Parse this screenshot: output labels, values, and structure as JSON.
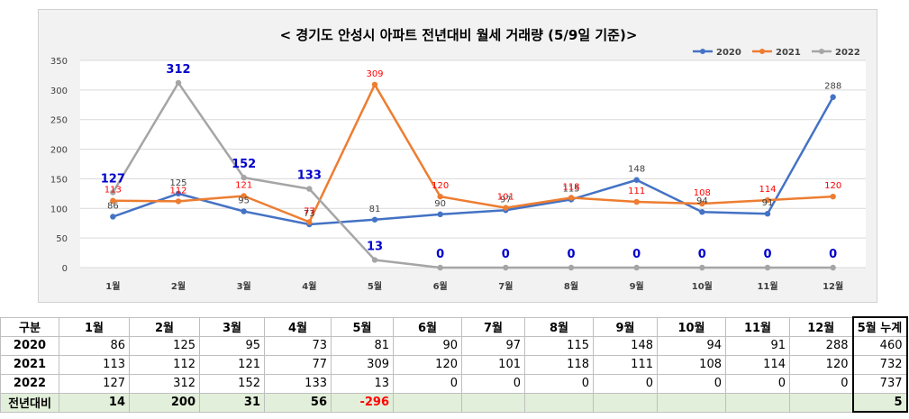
{
  "chart_data": {
    "type": "line",
    "title": "< 경기도 안성시  아파트 전년대비 월세 거래량 (5/9일 기준)>",
    "categories": [
      "1월",
      "2월",
      "3월",
      "4월",
      "5월",
      "6월",
      "7월",
      "8월",
      "9월",
      "10월",
      "11월",
      "12월"
    ],
    "ylim": [
      0,
      350
    ],
    "yticks": [
      0,
      50,
      100,
      150,
      200,
      250,
      300,
      350
    ],
    "grid": true,
    "legend": "top-right",
    "series": [
      {
        "name": "2020",
        "color": "#4472c4",
        "values": [
          86,
          125,
          95,
          73,
          81,
          90,
          97,
          115,
          148,
          94,
          91,
          288
        ],
        "label_color": "#404040"
      },
      {
        "name": "2021",
        "color": "#ed7d31",
        "values": [
          113,
          112,
          121,
          77,
          309,
          120,
          101,
          118,
          111,
          108,
          114,
          120
        ],
        "label_color": "#ff0000"
      },
      {
        "name": "2022",
        "color": "#a5a5a5",
        "values": [
          127,
          312,
          152,
          133,
          13,
          0,
          0,
          0,
          0,
          0,
          0,
          0
        ],
        "label_color": "#0000cc"
      }
    ]
  },
  "table": {
    "header": [
      "구분",
      "1월",
      "2월",
      "3월",
      "4월",
      "5월",
      "6월",
      "7월",
      "8월",
      "9월",
      "10월",
      "11월",
      "12월",
      "5월 누계"
    ],
    "rows": [
      {
        "label": "2020",
        "cells": [
          "86",
          "125",
          "95",
          "73",
          "81",
          "90",
          "97",
          "115",
          "148",
          "94",
          "91",
          "288"
        ],
        "total": "460"
      },
      {
        "label": "2021",
        "cells": [
          "113",
          "112",
          "121",
          "77",
          "309",
          "120",
          "101",
          "118",
          "111",
          "108",
          "114",
          "120"
        ],
        "total": "732"
      },
      {
        "label": "2022",
        "cells": [
          "127",
          "312",
          "152",
          "133",
          "13",
          "0",
          "0",
          "0",
          "0",
          "0",
          "0",
          "0"
        ],
        "total": "737"
      }
    ],
    "diff": {
      "label": "전년대비",
      "cells": [
        "14",
        "200",
        "31",
        "56",
        "-296",
        "",
        "",
        "",
        "",
        "",
        "",
        ""
      ],
      "total": "5"
    }
  }
}
